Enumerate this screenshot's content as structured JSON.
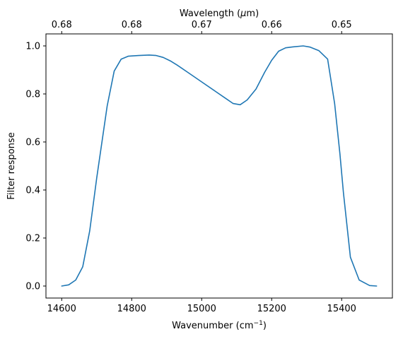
{
  "chart_data": {
    "type": "line",
    "xlabel": "Wavenumber (cm",
    "xlabel_sup": "−1",
    "xlabel_end": ")",
    "ylabel": "Filter response",
    "top_xlabel": "Wavelength (",
    "top_xlabel_mu": "μ",
    "top_xlabel_end": "m)",
    "xlim": [
      14555,
      15545
    ],
    "ylim": [
      -0.05,
      1.05
    ],
    "xticks": [
      14600,
      14800,
      15000,
      15200,
      15400
    ],
    "yticks": [
      0.0,
      0.2,
      0.4,
      0.6,
      0.8,
      1.0
    ],
    "top_ticks": [
      {
        "wn": 14600,
        "label": "0.68"
      },
      {
        "wn": 14800,
        "label": "0.68"
      },
      {
        "wn": 15000,
        "label": "0.67"
      },
      {
        "wn": 15200,
        "label": "0.66"
      },
      {
        "wn": 15400,
        "label": "0.65"
      }
    ],
    "line_color": "#1f77b4",
    "series": [
      {
        "x": [
          14600,
          14620,
          14640,
          14660,
          14680,
          14700,
          14730,
          14750,
          14770,
          14790,
          14820,
          14850,
          14870,
          14890,
          14910,
          14930,
          14960,
          15000,
          15040,
          15070,
          15090,
          15110,
          15130,
          15155,
          15180,
          15200,
          15220,
          15240,
          15260,
          15290,
          15310,
          15335,
          15360,
          15380,
          15395,
          15405,
          15425,
          15450,
          15480,
          15500
        ],
        "y": [
          0.0,
          0.005,
          0.025,
          0.08,
          0.23,
          0.45,
          0.75,
          0.895,
          0.945,
          0.957,
          0.96,
          0.962,
          0.96,
          0.952,
          0.938,
          0.92,
          0.89,
          0.85,
          0.81,
          0.78,
          0.76,
          0.755,
          0.775,
          0.82,
          0.89,
          0.94,
          0.978,
          0.992,
          0.996,
          1.0,
          0.995,
          0.98,
          0.945,
          0.76,
          0.55,
          0.39,
          0.12,
          0.025,
          0.002,
          0.0
        ]
      }
    ]
  }
}
